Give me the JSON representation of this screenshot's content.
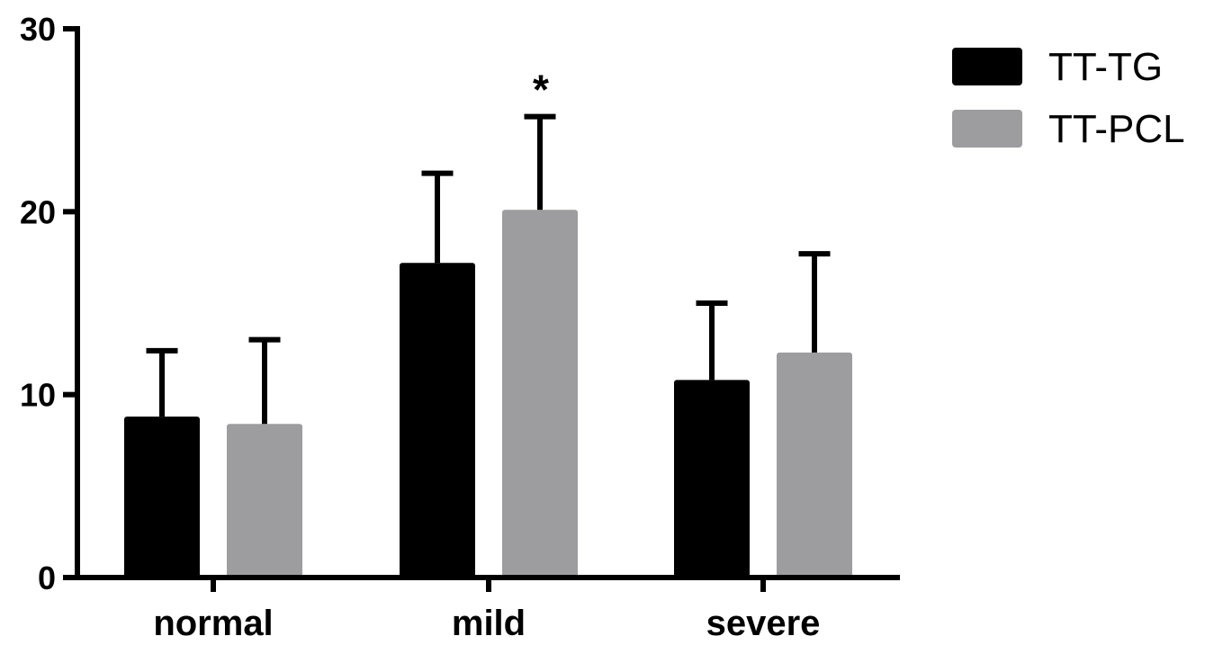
{
  "chart_data": {
    "type": "bar",
    "categories": [
      "normal",
      "mild",
      "severe"
    ],
    "series": [
      {
        "name": "TT-TG",
        "color": "#000000",
        "values": [
          8.8,
          17.2,
          10.8
        ],
        "error": [
          3.6,
          4.9,
          4.2
        ]
      },
      {
        "name": "TT-PCL",
        "color": "#9d9c9f",
        "values": [
          8.4,
          20.1,
          12.3
        ],
        "error": [
          4.6,
          5.1,
          5.4
        ]
      }
    ],
    "ylim": [
      0,
      30
    ],
    "yticks": [
      "0",
      "10",
      "20",
      "30"
    ],
    "annotations": [
      {
        "text": "*",
        "category": "mild",
        "series": "TT-PCL"
      }
    ],
    "legend_position": "top-right",
    "grid": false
  }
}
